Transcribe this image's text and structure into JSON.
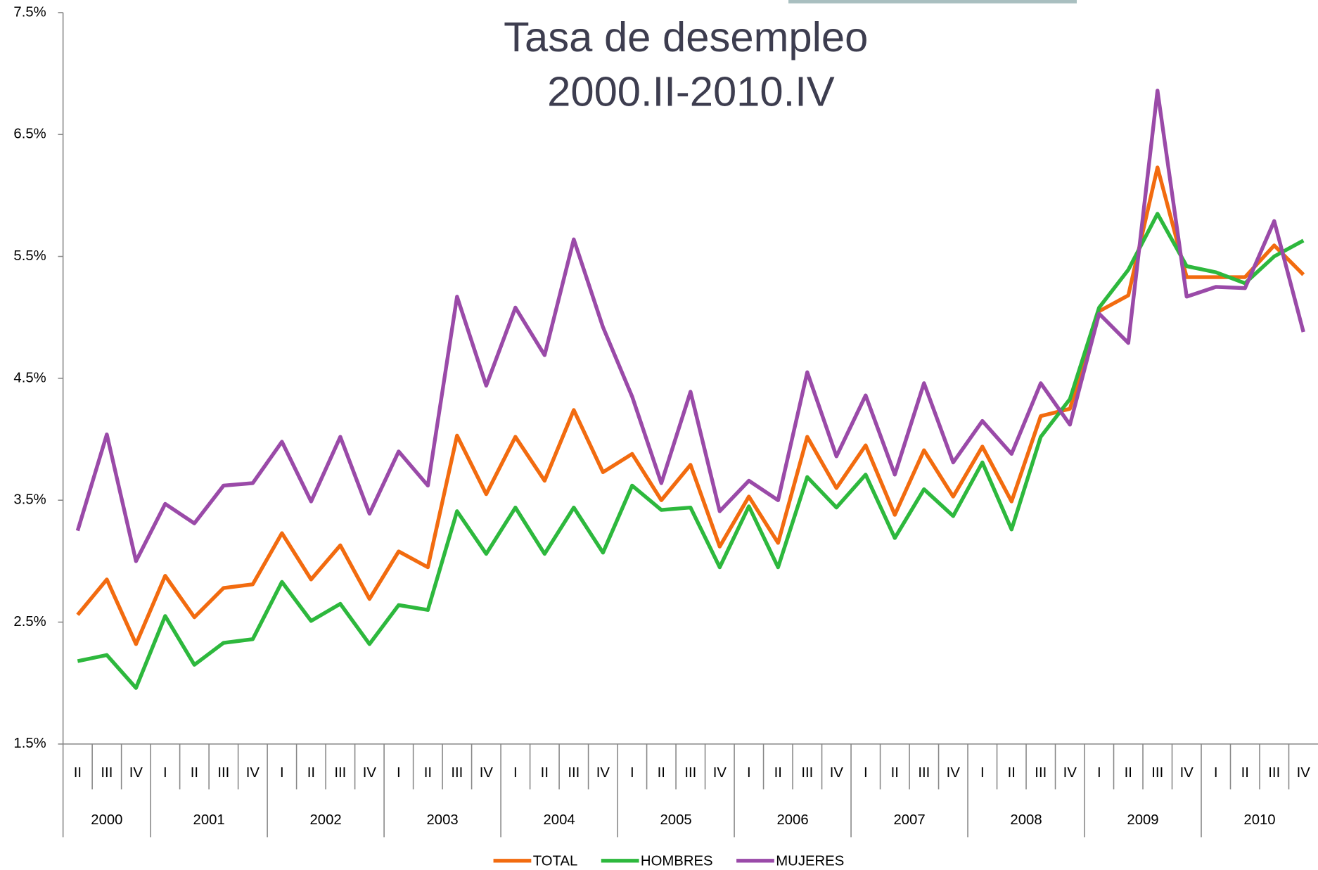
{
  "chart_data": {
    "type": "line",
    "title": "Tasa de desempleo",
    "subtitle": "2000.II-2010.IV",
    "categories": [
      "II",
      "III",
      "IV",
      "I",
      "II",
      "III",
      "IV",
      "I",
      "II",
      "III",
      "IV",
      "I",
      "II",
      "III",
      "IV",
      "I",
      "II",
      "III",
      "IV",
      "I",
      "II",
      "III",
      "IV",
      "I",
      "II",
      "III",
      "IV",
      "I",
      "II",
      "III",
      "IV",
      "I",
      "II",
      "III",
      "IV",
      "I",
      "II",
      "III",
      "IV",
      "I",
      "II",
      "III",
      "IV"
    ],
    "years": [
      "2000",
      "2001",
      "2002",
      "2003",
      "2004",
      "2005",
      "2006",
      "2007",
      "2008",
      "2009",
      "2010"
    ],
    "ylim": [
      1.5,
      7.5
    ],
    "yticks": [
      {
        "value": 1.5,
        "label": "1.5%"
      },
      {
        "value": 2.5,
        "label": "2.5%"
      },
      {
        "value": 3.5,
        "label": "3.5%"
      },
      {
        "value": 4.5,
        "label": "4.5%"
      },
      {
        "value": 5.5,
        "label": "5.5%"
      },
      {
        "value": 6.5,
        "label": "6.5%"
      },
      {
        "value": 7.5,
        "label": "7.5%"
      }
    ],
    "grid": false,
    "legend": "bottom",
    "series": [
      {
        "name": "TOTAL",
        "color": "#f26b0f",
        "values": [
          2.56,
          2.85,
          2.32,
          2.88,
          2.54,
          2.78,
          2.81,
          3.23,
          2.85,
          3.13,
          2.69,
          3.08,
          2.95,
          4.03,
          3.55,
          4.02,
          3.66,
          4.24,
          3.73,
          3.88,
          3.5,
          3.79,
          3.12,
          3.53,
          3.15,
          4.02,
          3.6,
          3.95,
          3.38,
          3.91,
          3.53,
          3.94,
          3.49,
          4.19,
          4.25,
          5.05,
          5.18,
          6.23,
          5.33,
          5.33,
          5.33,
          5.59,
          5.35
        ]
      },
      {
        "name": "HOMBRES",
        "color": "#2db83d",
        "values": [
          2.18,
          2.23,
          1.96,
          2.55,
          2.15,
          2.33,
          2.36,
          2.83,
          2.51,
          2.65,
          2.32,
          2.64,
          2.6,
          3.41,
          3.06,
          3.44,
          3.06,
          3.44,
          3.07,
          3.62,
          3.42,
          3.44,
          2.95,
          3.45,
          2.95,
          3.69,
          3.44,
          3.71,
          3.19,
          3.59,
          3.37,
          3.81,
          3.26,
          4.02,
          4.33,
          5.08,
          5.39,
          5.85,
          5.42,
          5.37,
          5.28,
          5.5,
          5.63
        ]
      },
      {
        "name": "MUJERES",
        "color": "#9a4aa8",
        "values": [
          3.25,
          4.04,
          3.0,
          3.47,
          3.31,
          3.62,
          3.64,
          3.98,
          3.49,
          4.02,
          3.39,
          3.9,
          3.62,
          5.17,
          4.44,
          5.08,
          4.69,
          5.64,
          4.92,
          4.35,
          3.64,
          4.39,
          3.41,
          3.66,
          3.5,
          4.55,
          3.86,
          4.36,
          3.71,
          4.46,
          3.81,
          4.15,
          3.88,
          4.46,
          4.12,
          5.03,
          4.79,
          6.86,
          5.17,
          5.25,
          5.24,
          5.79,
          4.88
        ]
      }
    ]
  }
}
